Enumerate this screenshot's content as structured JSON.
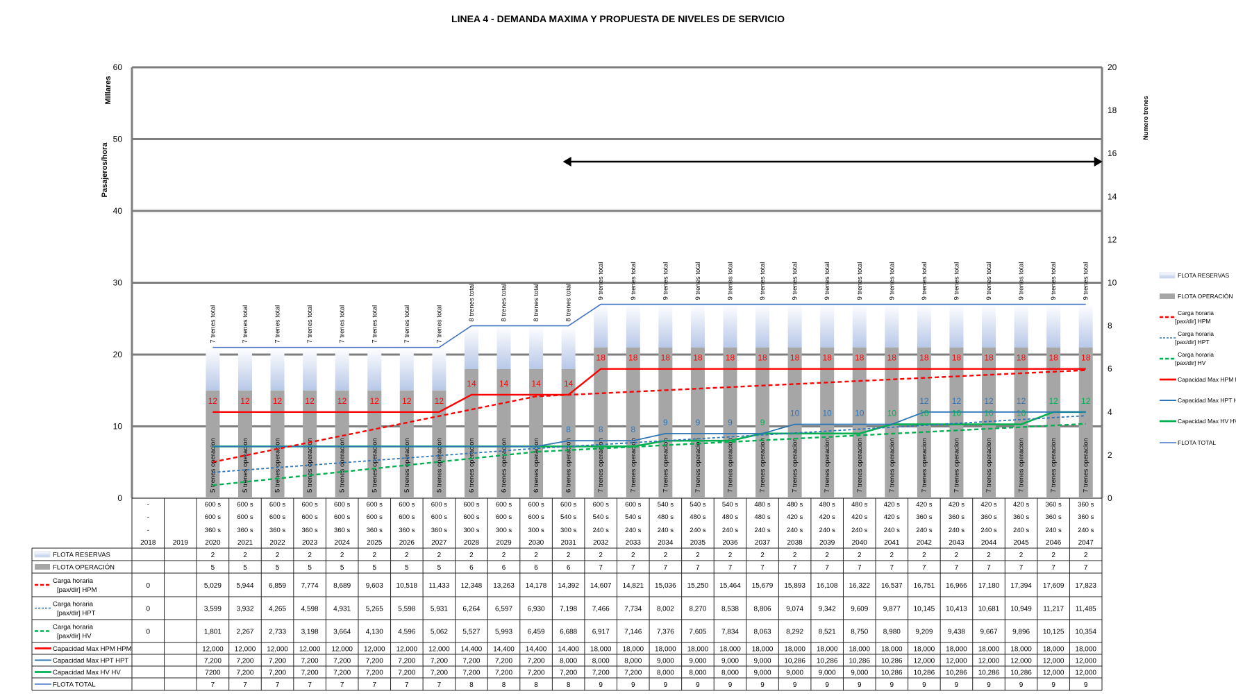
{
  "chart_data": {
    "type": "bar",
    "title": "LINEA 4 - DEMANDA MAXIMA Y PROPUESTA DE NIVELES DE SERVICIO",
    "ylabel": "Pasajeros/hora",
    "ylabel_units": "Millares",
    "y2label": "Numero trenes",
    "ylim": [
      0,
      60
    ],
    "y_ticks": [
      0,
      10,
      20,
      30,
      40,
      50,
      60
    ],
    "y2lim": [
      0,
      20
    ],
    "y2_ticks": [
      0,
      2,
      4,
      6,
      8,
      10,
      12,
      14,
      16,
      18,
      20
    ],
    "grid": "horizontal major only",
    "legend_position": "right",
    "arrow_years": [
      "2031",
      "2047"
    ],
    "colors": {
      "flota_reservas": "#b8c8e8",
      "flota_operacion": "#a6a6a6",
      "hpm": "#ff0000",
      "hpt": "#2e75b6",
      "hv": "#00b050",
      "flota_total": "#4472c4",
      "grid": "#7f7f7f"
    },
    "categories": [
      "2018",
      "2019",
      "2020",
      "2021",
      "2022",
      "2023",
      "2024",
      "2025",
      "2026",
      "2027",
      "2028",
      "2029",
      "2030",
      "2031",
      "2032",
      "2033",
      "2034",
      "2035",
      "2036",
      "2037",
      "2038",
      "2039",
      "2040",
      "2041",
      "2042",
      "2043",
      "2044",
      "2045",
      "2046",
      "2047"
    ],
    "headway_rows": [
      [
        "-",
        "",
        "600 s",
        "600 s",
        "600 s",
        "600 s",
        "600 s",
        "600 s",
        "600 s",
        "600 s",
        "600 s",
        "600 s",
        "600 s",
        "600 s",
        "600 s",
        "600 s",
        "540 s",
        "540 s",
        "540 s",
        "480 s",
        "480 s",
        "480 s",
        "480 s",
        "420 s",
        "420 s",
        "420 s",
        "420 s",
        "420 s",
        "360 s",
        "360 s"
      ],
      [
        "-",
        "",
        "600 s",
        "600 s",
        "600 s",
        "600 s",
        "600 s",
        "600 s",
        "600 s",
        "600 s",
        "600 s",
        "600 s",
        "600 s",
        "540 s",
        "540 s",
        "540 s",
        "480 s",
        "480 s",
        "480 s",
        "480 s",
        "420 s",
        "420 s",
        "420 s",
        "420 s",
        "360 s",
        "360 s",
        "360 s",
        "360 s",
        "360 s",
        "360 s"
      ],
      [
        "-",
        "",
        "360 s",
        "360 s",
        "360 s",
        "360 s",
        "360 s",
        "360 s",
        "360 s",
        "360 s",
        "300 s",
        "300 s",
        "300 s",
        "300 s",
        "240 s",
        "240 s",
        "240 s",
        "240 s",
        "240 s",
        "240 s",
        "240 s",
        "240 s",
        "240 s",
        "240 s",
        "240 s",
        "240 s",
        "240 s",
        "240 s",
        "240 s",
        "240 s"
      ]
    ],
    "series": [
      {
        "name": "FLOTA RESERVAS",
        "type": "bar",
        "axis": "y2",
        "values": [
          null,
          null,
          2,
          2,
          2,
          2,
          2,
          2,
          2,
          2,
          2,
          2,
          2,
          2,
          2,
          2,
          2,
          2,
          2,
          2,
          2,
          2,
          2,
          2,
          2,
          2,
          2,
          2,
          2,
          2
        ],
        "labels": [
          "",
          "",
          "7 trenes total",
          "7 trenes total",
          "7 trenes total",
          "7 trenes total",
          "7 trenes total",
          "7 trenes total",
          "7 trenes total",
          "7 trenes total",
          "8 trenes total",
          "8 trenes total",
          "8 trenes total",
          "8 trenes total",
          "9 trenes total",
          "9 trenes total",
          "9 trenes total",
          "9 trenes total",
          "9 trenes total",
          "9 trenes total",
          "9 trenes total",
          "9 trenes total",
          "9 trenes total",
          "9 trenes total",
          "9 trenes total",
          "9 trenes total",
          "9 trenes total",
          "9 trenes total",
          "9 trenes total",
          "9 trenes total"
        ]
      },
      {
        "name": "FLOTA OPERACIÓN",
        "type": "bar",
        "axis": "y2",
        "values": [
          null,
          null,
          5,
          5,
          5,
          5,
          5,
          5,
          5,
          5,
          6,
          6,
          6,
          6,
          7,
          7,
          7,
          7,
          7,
          7,
          7,
          7,
          7,
          7,
          7,
          7,
          7,
          7,
          7,
          7
        ],
        "labels": [
          "",
          "",
          "5 trenes operacion",
          "5 trenes operacion",
          "5 trenes operacion",
          "5 trenes operacion",
          "5 trenes operacion",
          "5 trenes operacion",
          "5 trenes operacion",
          "5 trenes operacion",
          "6 trenes operacion",
          "6 trenes operacion",
          "6 trenes operacion",
          "6 trenes operacion",
          "7 trenes operacion",
          "7 trenes operacion",
          "7 trenes operacion",
          "7 trenes operacion",
          "7 trenes operacion",
          "7 trenes operacion",
          "7 trenes operacion",
          "7 trenes operacion",
          "7 trenes operacion",
          "7 trenes operacion",
          "7 trenes operacion",
          "7 trenes operacion",
          "7 trenes operacion",
          "7 trenes operacion",
          "7 trenes operacion",
          "7 trenes operacion"
        ]
      },
      {
        "name": "Carga horaria [pax/dir] HPM",
        "type": "line-dashed",
        "axis": "y",
        "values": [
          null,
          null,
          5029,
          5944,
          6859,
          7774,
          8689,
          9603,
          10518,
          11433,
          12348,
          13263,
          14178,
          14392,
          14607,
          14821,
          15036,
          15250,
          15464,
          15679,
          15893,
          16108,
          16322,
          16537,
          16751,
          16966,
          17180,
          17394,
          17609,
          17823
        ],
        "table": [
          "0",
          "",
          "5,029",
          "5,944",
          "6,859",
          "7,774",
          "8,689",
          "9,603",
          "10,518",
          "11,433",
          "12,348",
          "13,263",
          "14,178",
          "14,392",
          "14,607",
          "14,821",
          "15,036",
          "15,250",
          "15,464",
          "15,679",
          "15,893",
          "16,108",
          "16,322",
          "16,537",
          "16,751",
          "16,966",
          "17,180",
          "17,394",
          "17,609",
          "17,823"
        ]
      },
      {
        "name": "Carga horaria [pax/dir] HPT",
        "type": "line-dashed",
        "axis": "y",
        "values": [
          null,
          null,
          3599,
          3932,
          4265,
          4598,
          4931,
          5265,
          5598,
          5931,
          6264,
          6597,
          6930,
          7198,
          7466,
          7734,
          8002,
          8270,
          8538,
          8806,
          9074,
          9342,
          9609,
          9877,
          10145,
          10413,
          10681,
          10949,
          11217,
          11485
        ],
        "table": [
          "0",
          "",
          "3,599",
          "3,932",
          "4,265",
          "4,598",
          "4,931",
          "5,265",
          "5,598",
          "5,931",
          "6,264",
          "6,597",
          "6,930",
          "7,198",
          "7,466",
          "7,734",
          "8,002",
          "8,270",
          "8,538",
          "8,806",
          "9,074",
          "9,342",
          "9,609",
          "9,877",
          "10,145",
          "10,413",
          "10,681",
          "10,949",
          "11,217",
          "11,485"
        ]
      },
      {
        "name": "Carga horaria [pax/dir] HV",
        "type": "line-dashed",
        "axis": "y",
        "values": [
          null,
          null,
          1801,
          2267,
          2733,
          3198,
          3664,
          4130,
          4596,
          5062,
          5527,
          5993,
          6459,
          6688,
          6917,
          7146,
          7376,
          7605,
          7834,
          8063,
          8292,
          8521,
          8750,
          8980,
          9209,
          9438,
          9667,
          9896,
          10125,
          10354
        ],
        "table": [
          "0",
          "",
          "1,801",
          "2,267",
          "2,733",
          "3,198",
          "3,664",
          "4,130",
          "4,596",
          "5,062",
          "5,527",
          "5,993",
          "6,459",
          "6,688",
          "6,917",
          "7,146",
          "7,376",
          "7,605",
          "7,834",
          "8,063",
          "8,292",
          "8,521",
          "8,750",
          "8,980",
          "9,209",
          "9,438",
          "9,667",
          "9,896",
          "10,125",
          "10,354"
        ]
      },
      {
        "name": "Capacidad Max HPM HPM",
        "type": "line",
        "axis": "y",
        "values": [
          null,
          null,
          12000,
          12000,
          12000,
          12000,
          12000,
          12000,
          12000,
          12000,
          14400,
          14400,
          14400,
          14400,
          18000,
          18000,
          18000,
          18000,
          18000,
          18000,
          18000,
          18000,
          18000,
          18000,
          18000,
          18000,
          18000,
          18000,
          18000,
          18000
        ],
        "table": [
          "",
          "",
          "12,000",
          "12,000",
          "12,000",
          "12,000",
          "12,000",
          "12,000",
          "12,000",
          "12,000",
          "14,400",
          "14,400",
          "14,400",
          "14,400",
          "18,000",
          "18,000",
          "18,000",
          "18,000",
          "18,000",
          "18,000",
          "18,000",
          "18,000",
          "18,000",
          "18,000",
          "18,000",
          "18,000",
          "18,000",
          "18,000",
          "18,000",
          "18,000"
        ],
        "labels": [
          "",
          "",
          "12",
          "12",
          "12",
          "12",
          "12",
          "12",
          "12",
          "12",
          "14",
          "14",
          "14",
          "14",
          "18",
          "18",
          "18",
          "18",
          "18",
          "18",
          "18",
          "18",
          "18",
          "18",
          "18",
          "18",
          "18",
          "18",
          "18",
          "18"
        ]
      },
      {
        "name": "Capacidad Max HPT HPT",
        "type": "line",
        "axis": "y",
        "values": [
          null,
          null,
          7200,
          7200,
          7200,
          7200,
          7200,
          7200,
          7200,
          7200,
          7200,
          7200,
          7200,
          8000,
          8000,
          8000,
          9000,
          9000,
          9000,
          9000,
          10286,
          10286,
          10286,
          10286,
          12000,
          12000,
          12000,
          12000,
          12000,
          12000
        ],
        "table": [
          "",
          "",
          "7,200",
          "7,200",
          "7,200",
          "7,200",
          "7,200",
          "7,200",
          "7,200",
          "7,200",
          "7,200",
          "7,200",
          "7,200",
          "8,000",
          "8,000",
          "8,000",
          "9,000",
          "9,000",
          "9,000",
          "9,000",
          "10,286",
          "10,286",
          "10,286",
          "10,286",
          "12,000",
          "12,000",
          "12,000",
          "12,000",
          "12,000",
          "12,000"
        ],
        "labels": [
          "",
          "",
          "",
          "",
          "",
          "",
          "",
          "",
          "",
          "",
          "",
          "",
          "",
          "8",
          "8",
          "8",
          "9",
          "9",
          "9",
          "",
          "10",
          "10",
          "10",
          "",
          "12",
          "12",
          "12",
          "12",
          "",
          ""
        ]
      },
      {
        "name": "Capacidad Max HV HV",
        "type": "line",
        "axis": "y",
        "values": [
          null,
          null,
          7200,
          7200,
          7200,
          7200,
          7200,
          7200,
          7200,
          7200,
          7200,
          7200,
          7200,
          7200,
          7200,
          7200,
          8000,
          8000,
          8000,
          9000,
          9000,
          9000,
          9000,
          10286,
          10286,
          10286,
          10286,
          10286,
          12000,
          12000
        ],
        "table": [
          "",
          "",
          "7200",
          "7,200",
          "7,200",
          "7,200",
          "7,200",
          "7,200",
          "7,200",
          "7,200",
          "7,200",
          "7,200",
          "7,200",
          "7,200",
          "7,200",
          "7,200",
          "8,000",
          "8,000",
          "8,000",
          "9,000",
          "9,000",
          "9,000",
          "9,000",
          "10,286",
          "10,286",
          "10,286",
          "10,286",
          "10,286",
          "12,000",
          "12,000"
        ],
        "labels": [
          "",
          "",
          "",
          "",
          "",
          "",
          "",
          "",
          "",
          "",
          "",
          "",
          "",
          "",
          "",
          "",
          "",
          "",
          "",
          "9",
          "",
          "",
          "",
          "10",
          "10",
          "10",
          "10",
          "10",
          "12",
          "12"
        ]
      },
      {
        "name": "FLOTA TOTAL",
        "type": "line",
        "axis": "y2",
        "values": [
          null,
          null,
          7,
          7,
          7,
          7,
          7,
          7,
          7,
          7,
          8,
          8,
          8,
          8,
          9,
          9,
          9,
          9,
          9,
          9,
          9,
          9,
          9,
          9,
          9,
          9,
          9,
          9,
          9,
          9
        ],
        "table": [
          "",
          "",
          "7",
          "7",
          "7",
          "7",
          "7",
          "7",
          "7",
          "7",
          "8",
          "8",
          "8",
          "8",
          "9",
          "9",
          "9",
          "9",
          "9",
          "9",
          "9",
          "9",
          "9",
          "9",
          "9",
          "9",
          "9",
          "9",
          "9",
          "9"
        ]
      }
    ],
    "legend": [
      {
        "key": "res",
        "text": [
          "FLOTA RESERVAS"
        ]
      },
      {
        "key": "op",
        "text": [
          "FLOTA OPERACIÓN"
        ]
      },
      {
        "key": "hpm",
        "text": [
          "Carga horaria",
          "[pax/dir] HPM"
        ]
      },
      {
        "key": "hpt",
        "text": [
          "Carga horaria",
          "[pax/dir] HPT"
        ]
      },
      {
        "key": "hv",
        "text": [
          "Carga horaria",
          "[pax/dir] HV"
        ]
      },
      {
        "key": "chpm",
        "text": [
          "Capacidad Max HPM HPM"
        ]
      },
      {
        "key": "chpt",
        "text": [
          "Capacidad Max HPT HPT"
        ]
      },
      {
        "key": "chv",
        "text": [
          "Capacidad Max HV HV"
        ]
      },
      {
        "key": "ft",
        "text": [
          "FLOTA TOTAL"
        ]
      }
    ],
    "table_rows": [
      {
        "key": "res",
        "series": 0,
        "row": "FLOTA RESERVAS",
        "text": [
          "FLOTA RESERVAS"
        ]
      },
      {
        "key": "op",
        "series": 1,
        "row": "FLOTA OPERACIÓN",
        "text": [
          "FLOTA OPERACIÓN"
        ]
      },
      {
        "key": "hpm",
        "series": 2,
        "text": [
          "Carga horaria",
          "[pax/dir] HPM"
        ]
      },
      {
        "key": "hpt",
        "series": 3,
        "text": [
          "Carga horaria",
          "[pax/dir] HPT"
        ]
      },
      {
        "key": "hv",
        "series": 4,
        "text": [
          "Carga horaria",
          "[pax/dir] HV"
        ]
      },
      {
        "key": "chpm",
        "series": 5,
        "text": [
          "Capacidad Max HPM HPM"
        ]
      },
      {
        "key": "chpt",
        "series": 6,
        "text": [
          "Capacidad Max HPT HPT"
        ]
      },
      {
        "key": "chv",
        "series": 7,
        "text": [
          "Capacidad Max HV HV"
        ]
      },
      {
        "key": "ft",
        "series": 8,
        "text": [
          "FLOTA TOTAL"
        ]
      }
    ]
  }
}
